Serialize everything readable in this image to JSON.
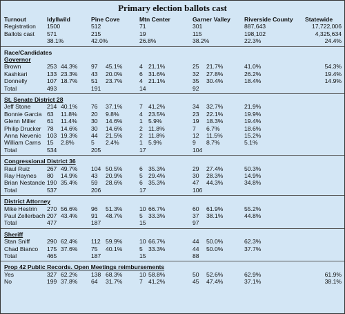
{
  "header": {
    "title": "Primary election ballots cast"
  },
  "table": {
    "columns": [
      "Turnout",
      "Idyllwild",
      "Pine Cove",
      "Mtn Center",
      "Garner Valley",
      "Riverside County",
      "Statewide"
    ],
    "sections": [
      {
        "rows": [
          [
            "Registration",
            "1500",
            null,
            "512",
            null,
            "71",
            null,
            "301",
            null,
            "887,643",
            "17,722,006"
          ],
          [
            "Ballots cast",
            "571",
            null,
            "215",
            null,
            "19",
            null,
            "115",
            null,
            "198,102",
            "4,325,634"
          ],
          [
            null,
            "38.1%",
            null,
            "42.0%",
            null,
            "26.8%",
            null,
            "38.2%",
            null,
            "22.3%",
            "24.4%"
          ]
        ]
      },
      {
        "headings": [
          "Race/Candidates",
          "Governor"
        ],
        "rows": [
          [
            "Brown",
            "253",
            "44.3%",
            "97",
            "45.1%",
            "4",
            "21.1%",
            "25",
            "21.7%",
            "41.0%",
            "54.3%"
          ],
          [
            "Kashkari",
            "133",
            "23.3%",
            "43",
            "20.0%",
            "6",
            "31.6%",
            "32",
            "27.8%",
            "26.2%",
            "19.4%"
          ],
          [
            "Donnelly",
            "107",
            "18.7%",
            "51",
            "23.7%",
            "4",
            "21.1%",
            "35",
            "30.4%",
            "18.4%",
            "14.9%"
          ],
          [
            "Total",
            "493",
            null,
            "191",
            null,
            "14",
            null,
            "92",
            null,
            null,
            null
          ]
        ]
      },
      {
        "headings": [
          "St. Senate District 28"
        ],
        "rows": [
          [
            "Jeff Stone",
            "214",
            "40.1%",
            "76",
            "37.1%",
            "7",
            "41.2%",
            "34",
            "32.7%",
            "21.9%",
            null
          ],
          [
            "Bonnie Garcia",
            "63",
            "11.8%",
            "20",
            "9.8%",
            "4",
            "23.5%",
            "23",
            "22.1%",
            "19.9%",
            null
          ],
          [
            "Glenn Miller",
            "61",
            "11.4%",
            "30",
            "14.6%",
            "1",
            "5.9%",
            "19",
            "18.3%",
            "19.4%",
            null
          ],
          [
            "Philip Drucker",
            "78",
            "14.6%",
            "30",
            "14.6%",
            "2",
            "11.8%",
            "7",
            "6.7%",
            "18.6%",
            null
          ],
          [
            "Anna Nevenic",
            "103",
            "19.3%",
            "44",
            "21.5%",
            "2",
            "11.8%",
            "12",
            "11.5%",
            "15.2%",
            null
          ],
          [
            "William Carns",
            "15",
            "2.8%",
            "5",
            "2.4%",
            "1",
            "5.9%",
            "9",
            "8.7%",
            "5.1%",
            null
          ],
          [
            "Total",
            "534",
            null,
            "205",
            null,
            "17",
            null,
            "104",
            null,
            null,
            null
          ]
        ]
      },
      {
        "headings": [
          "Congressional District 36"
        ],
        "rows": [
          [
            "Raul Ruiz",
            "267",
            "49.7%",
            "104",
            "50.5%",
            "6",
            "35.3%",
            "29",
            "27.4%",
            "50.3%",
            null
          ],
          [
            "Ray Haynes",
            "80",
            "14.9%",
            "43",
            "20.9%",
            "5",
            "29.4%",
            "30",
            "28.3%",
            "14.9%",
            null
          ],
          [
            "Brian Nestande",
            "190",
            "35.4%",
            "59",
            "28.6%",
            "6",
            "35.3%",
            "47",
            "44.3%",
            "34.8%",
            null
          ],
          [
            "Total",
            "537",
            null,
            "206",
            null,
            "17",
            null,
            "106",
            null,
            null,
            null
          ]
        ]
      },
      {
        "headings": [
          "District Attorney"
        ],
        "rows": [
          [
            "Mike Hestrin",
            "270",
            "56.6%",
            "96",
            "51.3%",
            "10",
            "66.7%",
            "60",
            "61.9%",
            "55.2%",
            null
          ],
          [
            "Paul Zellerbach",
            "207",
            "43.4%",
            "91",
            "48.7%",
            "5",
            "33.3%",
            "37",
            "38.1%",
            "44.8%",
            null
          ],
          [
            "Total",
            "477",
            null,
            "187",
            null,
            "15",
            null,
            "97",
            null,
            null,
            null
          ]
        ]
      },
      {
        "headings": [
          "Sheriff"
        ],
        "rows": [
          [
            "Stan Sniff",
            "290",
            "62.4%",
            "112",
            "59.9%",
            "10",
            "66.7%",
            "44",
            "50.0%",
            "62.3%",
            null
          ],
          [
            "Chad Bianco",
            "175",
            "37.6%",
            "75",
            "40.1%",
            "5",
            "33.3%",
            "44",
            "50.0%",
            "37.7%",
            null
          ],
          [
            "Total",
            "465",
            null,
            "187",
            null,
            "15",
            null,
            "88",
            null,
            null,
            null
          ]
        ]
      },
      {
        "headings": [
          "Prop 42 Public Records. Open Meetings reimbursements"
        ],
        "rows": [
          [
            "Yes",
            "327",
            "62.2%",
            "138",
            "68.3%",
            "10",
            "58.8%",
            "50",
            "52.6%",
            "62.9%",
            "61.9%"
          ],
          [
            "No",
            "199",
            "37.8%",
            "64",
            "31.7%",
            "7",
            "41.2%",
            "45",
            "47.4%",
            "37.1%",
            "38.1%"
          ]
        ]
      }
    ]
  }
}
